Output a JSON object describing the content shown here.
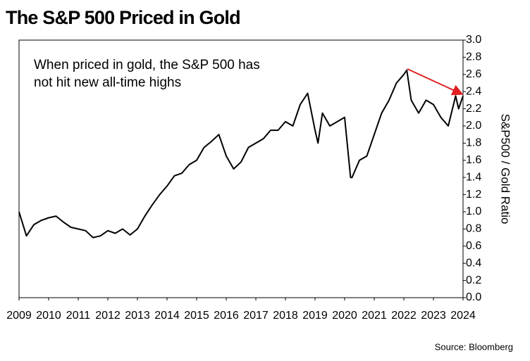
{
  "chart_data": {
    "type": "line",
    "title": "The S&P 500 Priced in Gold",
    "annotation": "When priced in gold, the S&P 500 has not hit new all-time highs",
    "y_axis_label": "S&P500 / Gold Ratio",
    "source": "Source: Bloomberg",
    "color": "#000000",
    "arrow_color": "#e02020",
    "x": [
      2009.0,
      2009.25,
      2009.5,
      2009.75,
      2010.0,
      2010.25,
      2010.5,
      2010.75,
      2011.0,
      2011.25,
      2011.5,
      2011.75,
      2012.0,
      2012.25,
      2012.5,
      2012.75,
      2013.0,
      2013.25,
      2013.5,
      2013.75,
      2014.0,
      2014.25,
      2014.5,
      2014.75,
      2015.0,
      2015.25,
      2015.5,
      2015.75,
      2016.0,
      2016.25,
      2016.5,
      2016.75,
      2017.0,
      2017.25,
      2017.5,
      2017.75,
      2018.0,
      2018.25,
      2018.5,
      2018.75,
      2019.0,
      2019.1,
      2019.25,
      2019.5,
      2019.75,
      2020.0,
      2020.2,
      2020.25,
      2020.5,
      2020.75,
      2021.0,
      2021.25,
      2021.5,
      2021.75,
      2022.0,
      2022.1,
      2022.25,
      2022.5,
      2022.75,
      2023.0,
      2023.25,
      2023.5,
      2023.75,
      2023.85,
      2024.0
    ],
    "values": [
      1.0,
      0.72,
      0.85,
      0.9,
      0.93,
      0.95,
      0.88,
      0.82,
      0.8,
      0.78,
      0.7,
      0.72,
      0.78,
      0.75,
      0.8,
      0.73,
      0.8,
      0.95,
      1.08,
      1.2,
      1.3,
      1.42,
      1.45,
      1.55,
      1.6,
      1.75,
      1.82,
      1.9,
      1.65,
      1.5,
      1.58,
      1.75,
      1.8,
      1.85,
      1.95,
      1.95,
      2.05,
      2.0,
      2.25,
      2.38,
      1.95,
      1.8,
      2.15,
      2.0,
      2.05,
      2.1,
      1.4,
      1.4,
      1.6,
      1.65,
      1.9,
      2.15,
      2.3,
      2.5,
      2.6,
      2.65,
      2.3,
      2.15,
      2.3,
      2.25,
      2.1,
      2.0,
      2.35,
      2.2,
      2.35
    ],
    "xlim": [
      2009,
      2024
    ],
    "xticks": [
      2009,
      2010,
      2011,
      2012,
      2013,
      2014,
      2015,
      2016,
      2017,
      2018,
      2019,
      2020,
      2021,
      2022,
      2023,
      2024
    ],
    "ylim": [
      0,
      3
    ],
    "yticks": [
      {
        "value": 0,
        "label": "0.0"
      },
      0.2,
      0.4,
      0.6,
      0.8,
      {
        "value": 1,
        "label": "1.0"
      },
      1.2,
      1.4,
      1.6,
      1.8,
      {
        "value": 2,
        "label": "2.0"
      },
      2.2,
      2.4,
      2.6,
      2.8,
      {
        "value": 3,
        "label": "3.0"
      }
    ],
    "y_axis_side": "right",
    "grid": false
  }
}
